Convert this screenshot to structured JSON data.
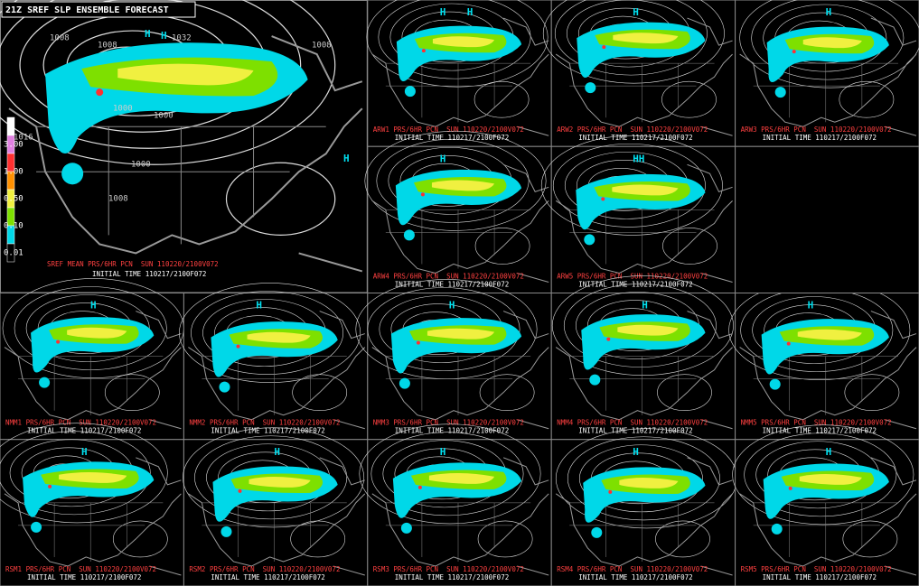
{
  "mean_panel": {
    "title": "21Z SREF SLP ENSEMBLE FORECAST",
    "label": "SREF MEAN PRS/6HR PCN  SUN 110220/2100V072",
    "init_time": "INITIAL TIME 110217/2100F072",
    "legend": [
      "3.00",
      "1.00",
      "0.50",
      "0.10",
      "0.01"
    ],
    "isobars": [
      "1008",
      "1008",
      "1032",
      "1008",
      "1000",
      "1000",
      "1016",
      "1000",
      "1008"
    ],
    "highs": [
      "H",
      "H",
      "H"
    ]
  },
  "members": [
    {
      "label": "ARW1 PRS/6HR PCN  SUN 110220/2100V072",
      "init_time": "INITIAL TIME 110217/2100F072",
      "highs": [
        "H",
        "H"
      ]
    },
    {
      "label": "ARW2 PRS/6HR PCN  SUN 110220/2100V072",
      "init_time": "INITIAL TIME 110217/2100F072",
      "highs": [
        "H"
      ]
    },
    {
      "label": "ARW3 PRS/6HR PCN  SUN 110220/2100V072",
      "init_time": "INITIAL TIME 110217/2100F072",
      "highs": [
        "H"
      ]
    },
    {
      "label": "ARW4 PRS/6HR PCN  SUN 110220/2100V072",
      "init_time": "INITIAL TIME 110217/2100F072",
      "highs": [
        "H"
      ]
    },
    {
      "label": "ARW5 PRS/6HR PCN  SUN 110220/2100V072",
      "init_time": "INITIAL TIME 110217/2100F072",
      "highs": [
        "HH"
      ]
    },
    {
      "label": "NMM1 PRS/6HR PCN  SUN 110220/2100V072",
      "init_time": "INITIAL TIME 110217/2100F072",
      "highs": [
        "H"
      ]
    },
    {
      "label": "NMM2 PRS/6HR PCN  SUN 110220/2100V072",
      "init_time": "INITIAL TIME 110217/2100F072",
      "highs": [
        "H"
      ]
    },
    {
      "label": "NMM3 PRS/6HR PCN  SUN 110220/2100V072",
      "init_time": "INITIAL TIME 110217/2100F072",
      "highs": [
        "H"
      ]
    },
    {
      "label": "NMM4 PRS/6HR PCN  SUN 110220/2100V072",
      "init_time": "INITIAL TIME 110217/2100F072",
      "highs": [
        "H"
      ]
    },
    {
      "label": "NMM5 PRS/6HR PCN  SUN 110220/2100V072",
      "init_time": "INITIAL TIME 110217/2100F072",
      "highs": [
        "H"
      ]
    },
    {
      "label": "RSM1 PRS/6HR PCN  SUN 110220/2100V072",
      "init_time": "INITIAL TIME 110217/2100F072",
      "highs": [
        "H"
      ]
    },
    {
      "label": "RSM2 PRS/6HR PCN  SUN 110220/2100V072",
      "init_time": "INITIAL TIME 110217/2100F072",
      "highs": [
        "H"
      ]
    },
    {
      "label": "RSM3 PRS/6HR PCN  SUN 110220/2100V072",
      "init_time": "INITIAL TIME 110217/2100F072",
      "highs": [
        "H"
      ]
    },
    {
      "label": "RSM4 PRS/6HR PCN  SUN 110220/2100V072",
      "init_time": "INITIAL TIME 110217/2100F072",
      "highs": [
        "H"
      ]
    },
    {
      "label": "RSM5 PRS/6HR PCN  SUN 110220/2100V072",
      "init_time": "INITIAL TIME 110217/2100F072",
      "highs": [
        "H"
      ]
    }
  ]
}
